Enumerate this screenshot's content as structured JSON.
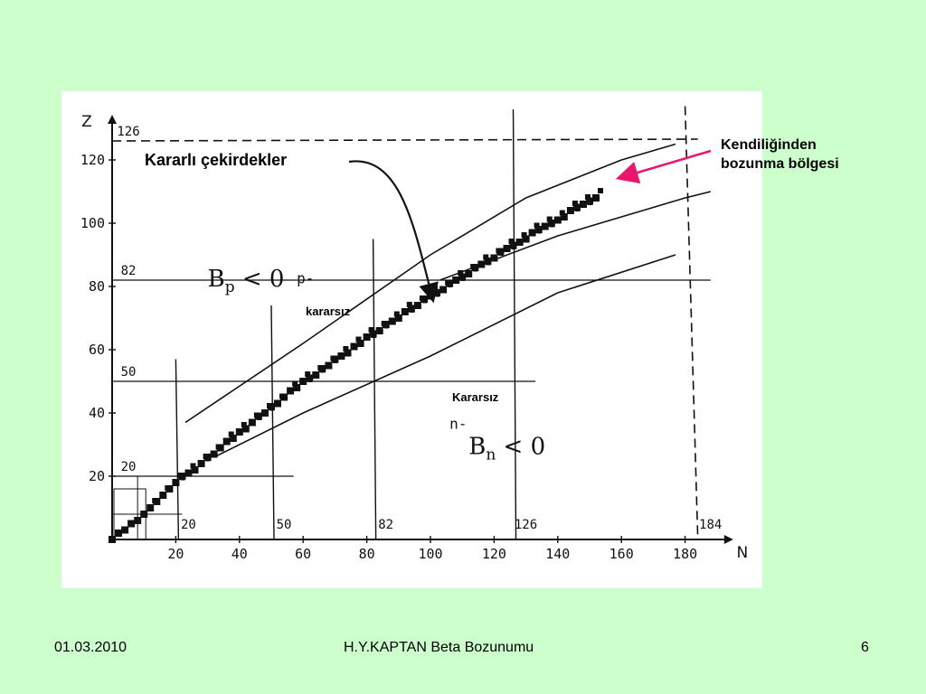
{
  "chart_data": {
    "type": "scatter",
    "title": "",
    "xlabel": "N",
    "ylabel": "Z",
    "xlim": [
      0,
      190
    ],
    "ylim": [
      0,
      130
    ],
    "x_ticks": [
      "20",
      "40",
      "60",
      "80",
      "100",
      "120",
      "140",
      "160",
      "180"
    ],
    "y_ticks": [
      "20",
      "40",
      "60",
      "80",
      "100",
      "120"
    ],
    "x_tick_values": [
      20,
      40,
      60,
      80,
      100,
      120,
      140,
      160,
      180
    ],
    "y_tick_values": [
      20,
      40,
      60,
      80,
      100,
      120
    ],
    "magic_numbers_neutron": [
      {
        "value": 20,
        "label": "20"
      },
      {
        "value": 50,
        "label": "50"
      },
      {
        "value": 82,
        "label": "82"
      },
      {
        "value": 126,
        "label": "126"
      },
      {
        "value": 184,
        "label": "184"
      }
    ],
    "magic_numbers_proton": [
      {
        "value": 20,
        "label": "20"
      },
      {
        "value": 50,
        "label": "50"
      },
      {
        "value": 82,
        "label": "82"
      },
      {
        "value": 126,
        "label": "126"
      }
    ],
    "stable_nuclei": [
      [
        0,
        0
      ],
      [
        2,
        2
      ],
      [
        4,
        3
      ],
      [
        6,
        5
      ],
      [
        8,
        6
      ],
      [
        10,
        8
      ],
      [
        12,
        10
      ],
      [
        14,
        12
      ],
      [
        16,
        14
      ],
      [
        18,
        16
      ],
      [
        20,
        18
      ],
      [
        22,
        20
      ],
      [
        24,
        21
      ],
      [
        26,
        22
      ],
      [
        28,
        24
      ],
      [
        30,
        26
      ],
      [
        32,
        27
      ],
      [
        34,
        29
      ],
      [
        36,
        31
      ],
      [
        38,
        32
      ],
      [
        40,
        34
      ],
      [
        42,
        35
      ],
      [
        44,
        37
      ],
      [
        46,
        39
      ],
      [
        48,
        40
      ],
      [
        50,
        42
      ],
      [
        52,
        43
      ],
      [
        54,
        45
      ],
      [
        56,
        47
      ],
      [
        58,
        48
      ],
      [
        60,
        50
      ],
      [
        62,
        51
      ],
      [
        64,
        52
      ],
      [
        66,
        54
      ],
      [
        68,
        55
      ],
      [
        70,
        57
      ],
      [
        72,
        58
      ],
      [
        74,
        59
      ],
      [
        76,
        61
      ],
      [
        78,
        62
      ],
      [
        80,
        64
      ],
      [
        82,
        65
      ],
      [
        84,
        66
      ],
      [
        86,
        68
      ],
      [
        88,
        69
      ],
      [
        90,
        70
      ],
      [
        92,
        72
      ],
      [
        94,
        73
      ],
      [
        96,
        74
      ],
      [
        98,
        76
      ],
      [
        100,
        77
      ],
      [
        102,
        78
      ],
      [
        104,
        79
      ],
      [
        106,
        81
      ],
      [
        108,
        82
      ],
      [
        110,
        83
      ],
      [
        112,
        84
      ],
      [
        114,
        86
      ],
      [
        116,
        87
      ],
      [
        118,
        88
      ],
      [
        120,
        89
      ],
      [
        122,
        91
      ],
      [
        124,
        92
      ],
      [
        126,
        93
      ],
      [
        128,
        94
      ],
      [
        130,
        95
      ],
      [
        132,
        97
      ],
      [
        134,
        98
      ],
      [
        136,
        99
      ],
      [
        138,
        100
      ],
      [
        140,
        101
      ],
      [
        142,
        102
      ],
      [
        144,
        104
      ],
      [
        146,
        105
      ],
      [
        148,
        106
      ],
      [
        150,
        107
      ],
      [
        152,
        108
      ]
    ],
    "boundaries": [
      {
        "name": "upper-limit-1",
        "points": [
          [
            23,
            37
          ],
          [
            60,
            62
          ],
          [
            100,
            90
          ],
          [
            130,
            108
          ],
          [
            160,
            120
          ],
          [
            177,
            125
          ]
        ]
      },
      {
        "name": "upper-limit-2",
        "points": [
          [
            103,
            82
          ],
          [
            140,
            96
          ],
          [
            160,
            102
          ],
          [
            180,
            108
          ],
          [
            188,
            110
          ]
        ]
      },
      {
        "name": "lower-limit",
        "points": [
          [
            32,
            26
          ],
          [
            60,
            40
          ],
          [
            100,
            58
          ],
          [
            140,
            78
          ],
          [
            177,
            90
          ]
        ]
      }
    ],
    "region_labels": [
      {
        "text": "Bp < 0",
        "n": 30,
        "z": 80
      },
      {
        "text": "p-",
        "n": 58,
        "z": 81
      },
      {
        "text": "n-",
        "n": 106,
        "z": 35
      },
      {
        "text": "Bn < 0",
        "n": 112,
        "z": 27
      }
    ]
  },
  "annotations": {
    "stable": "Kararlı çekirdekler",
    "spontaneous_line1": "Kendiliğinden",
    "spontaneous_line2": "bozunma bölgesi",
    "p_unstable": "kararsız",
    "n_unstable": "Kararsız"
  },
  "footer": {
    "date": "01.03.2010",
    "title": "H.Y.KAPTAN  Beta Bozunumu",
    "page": "6"
  },
  "colors": {
    "background": "#ccffcc",
    "panel": "#ffffff",
    "ink": "#111111",
    "arrow": "#e8166e"
  }
}
